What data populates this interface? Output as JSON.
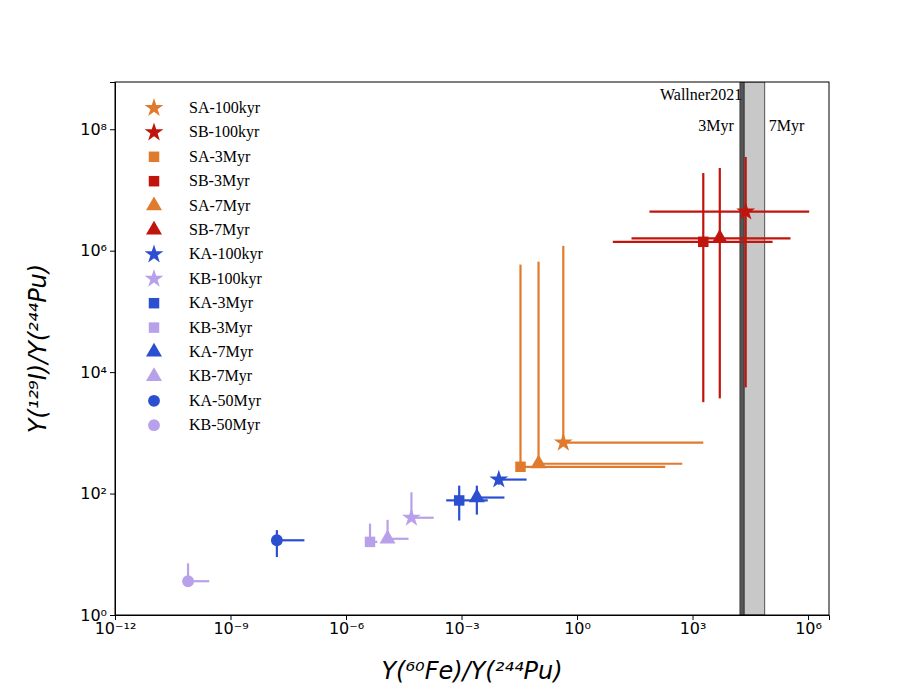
{
  "chart_data": {
    "type": "scatter",
    "x_label": "Y(⁶⁰Fe)/Y(²⁴⁴Pu)",
    "y_label": "Y(¹²⁹I)/Y(²⁴⁴Pu)",
    "log": true,
    "grid": false,
    "legend": "upper left",
    "xlim": [
      1e-12,
      3500000.0
    ],
    "ylim": [
      1,
      600000000.0
    ],
    "xticks": [
      {
        "value": 1e-12,
        "label": "10⁻¹²"
      },
      {
        "value": 1e-09,
        "label": "10⁻⁹"
      },
      {
        "value": 1e-06,
        "label": "10⁻⁶"
      },
      {
        "value": 0.001,
        "label": "10⁻³"
      },
      {
        "value": 1,
        "label": "10⁰"
      },
      {
        "value": 1000.0,
        "label": "10³"
      },
      {
        "value": 1000000.0,
        "label": "10⁶"
      }
    ],
    "yticks": [
      {
        "value": 1,
        "label": "10⁰"
      },
      {
        "value": 100,
        "label": "10²"
      },
      {
        "value": 10000,
        "label": "10⁴"
      },
      {
        "value": 1000000,
        "label": "10⁶"
      },
      {
        "value": 100000000,
        "label": "10⁸"
      }
    ],
    "annotation": "Wallner2021",
    "bands": [
      {
        "label": "3Myr",
        "x": [
          17000,
          22000
        ],
        "color": "#555555"
      },
      {
        "label": "7Myr",
        "x": [
          22000,
          75000
        ],
        "color": "#c8c8c8"
      }
    ],
    "series": [
      {
        "name": "SA-100kyr",
        "color": "#e07a2c",
        "marker": "star",
        "x": [
          0.44
        ],
        "values": [
          690
        ],
        "x_err": [
          [
            null,
            1900
          ]
        ],
        "y_err": [
          [
            null,
            1200000
          ]
        ]
      },
      {
        "name": "SB-100kyr",
        "color": "#c0140c",
        "marker": "star",
        "x": [
          24000
        ],
        "values": [
          4400000
        ],
        "x_err": [
          [
            76,
            1070000
          ]
        ],
        "y_err": [
          [
            5600,
            35000000
          ]
        ]
      },
      {
        "name": "SA-3Myr",
        "color": "#e07a2c",
        "marker": "square",
        "x": [
          0.034
        ],
        "values": [
          276
        ],
        "x_err": [
          [
            null,
            195
          ]
        ],
        "y_err": [
          [
            null,
            590000
          ]
        ]
      },
      {
        "name": "SB-3Myr",
        "color": "#c0140c",
        "marker": "square",
        "x": [
          1900
        ],
        "values": [
          1400000
        ],
        "x_err": [
          [
            8.5,
            120000
          ]
        ],
        "y_err": [
          [
            3200,
            19000000
          ]
        ]
      },
      {
        "name": "SA-7Myr",
        "color": "#e07a2c",
        "marker": "triangle",
        "x": [
          0.1
        ],
        "values": [
          310
        ],
        "x_err": [
          [
            null,
            540
          ]
        ],
        "y_err": [
          [
            null,
            660000
          ]
        ]
      },
      {
        "name": "SB-7Myr",
        "color": "#c0140c",
        "marker": "triangle",
        "x": [
          5100
        ],
        "values": [
          1600000
        ],
        "x_err": [
          [
            26,
            350000
          ]
        ],
        "y_err": [
          [
            3700,
            23000000
          ]
        ]
      },
      {
        "name": "KA-100kyr",
        "color": "#2b4fd0",
        "marker": "star",
        "x": [
          0.0093
        ],
        "values": [
          170
        ],
        "x_err": [
          [
            null,
            0.049
          ]
        ],
        "y_err": [
          [
            140,
            200
          ]
        ]
      },
      {
        "name": "KB-100kyr",
        "color": "#b9a0ea",
        "marker": "star",
        "x": [
          5e-05
        ],
        "values": [
          40
        ],
        "x_err": [
          [
            null,
            0.00019
          ]
        ],
        "y_err": [
          [
            null,
            105
          ]
        ]
      },
      {
        "name": "KA-3Myr",
        "color": "#2b4fd0",
        "marker": "square",
        "x": [
          0.00087
        ],
        "values": [
          77
        ],
        "x_err": [
          [
            0.0004,
            0.0048
          ]
        ],
        "y_err": [
          [
            36,
            135
          ]
        ]
      },
      {
        "name": "KB-3Myr",
        "color": "#b9a0ea",
        "marker": "square",
        "x": [
          4.2e-06
        ],
        "values": [
          16
        ],
        "x_err": [
          [
            null,
            6.5e-06
          ]
        ],
        "y_err": [
          [
            null,
            32
          ]
        ]
      },
      {
        "name": "KA-7Myr",
        "color": "#2b4fd0",
        "marker": "triangle",
        "x": [
          0.0025
        ],
        "values": [
          86
        ],
        "x_err": [
          [
            null,
            0.013
          ]
        ],
        "y_err": [
          [
            45,
            135
          ]
        ]
      },
      {
        "name": "KB-7Myr",
        "color": "#b9a0ea",
        "marker": "triangle",
        "x": [
          1.2e-05
        ],
        "values": [
          18
        ],
        "x_err": [
          [
            null,
            4.2e-05
          ]
        ],
        "y_err": [
          [
            null,
            37
          ]
        ]
      },
      {
        "name": "KA-50Myr",
        "color": "#2b4fd0",
        "marker": "circle",
        "x": [
          1.6e-08
        ],
        "values": [
          17
        ],
        "x_err": [
          [
            null,
            8.3e-08
          ]
        ],
        "y_err": [
          [
            9,
            25
          ]
        ]
      },
      {
        "name": "KB-50Myr",
        "color": "#b9a0ea",
        "marker": "circle",
        "x": [
          7.9e-11
        ],
        "values": [
          3.6
        ],
        "x_err": [
          [
            null,
            2.8e-10
          ]
        ],
        "y_err": [
          [
            null,
            7.1
          ]
        ]
      }
    ]
  }
}
